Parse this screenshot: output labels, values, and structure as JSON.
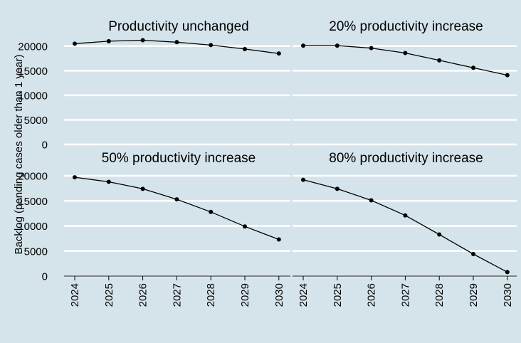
{
  "chart_data": {
    "type": "line",
    "ylabel": "Backlog (pending cases older than 1 year)",
    "x": [
      2024,
      2025,
      2026,
      2027,
      2028,
      2029,
      2030
    ],
    "ylim": [
      0,
      22000
    ],
    "yticks": [
      0,
      5000,
      10000,
      15000,
      20000
    ],
    "grid": true,
    "line_color": "#000000",
    "background_color": "#d5e4eb",
    "panels": [
      {
        "title": "Productivity unchanged",
        "values": [
          20500,
          21000,
          21200,
          20800,
          20200,
          19400,
          18500
        ]
      },
      {
        "title": "20% productivity increase",
        "values": [
          20100,
          20100,
          19600,
          18600,
          17100,
          15600,
          14100
        ]
      },
      {
        "title": "50% productivity increase",
        "values": [
          19700,
          18800,
          17400,
          15300,
          12800,
          9900,
          7300
        ]
      },
      {
        "title": "80% productivity increase",
        "values": [
          19200,
          17400,
          15100,
          12100,
          8300,
          4400,
          800
        ]
      }
    ]
  }
}
